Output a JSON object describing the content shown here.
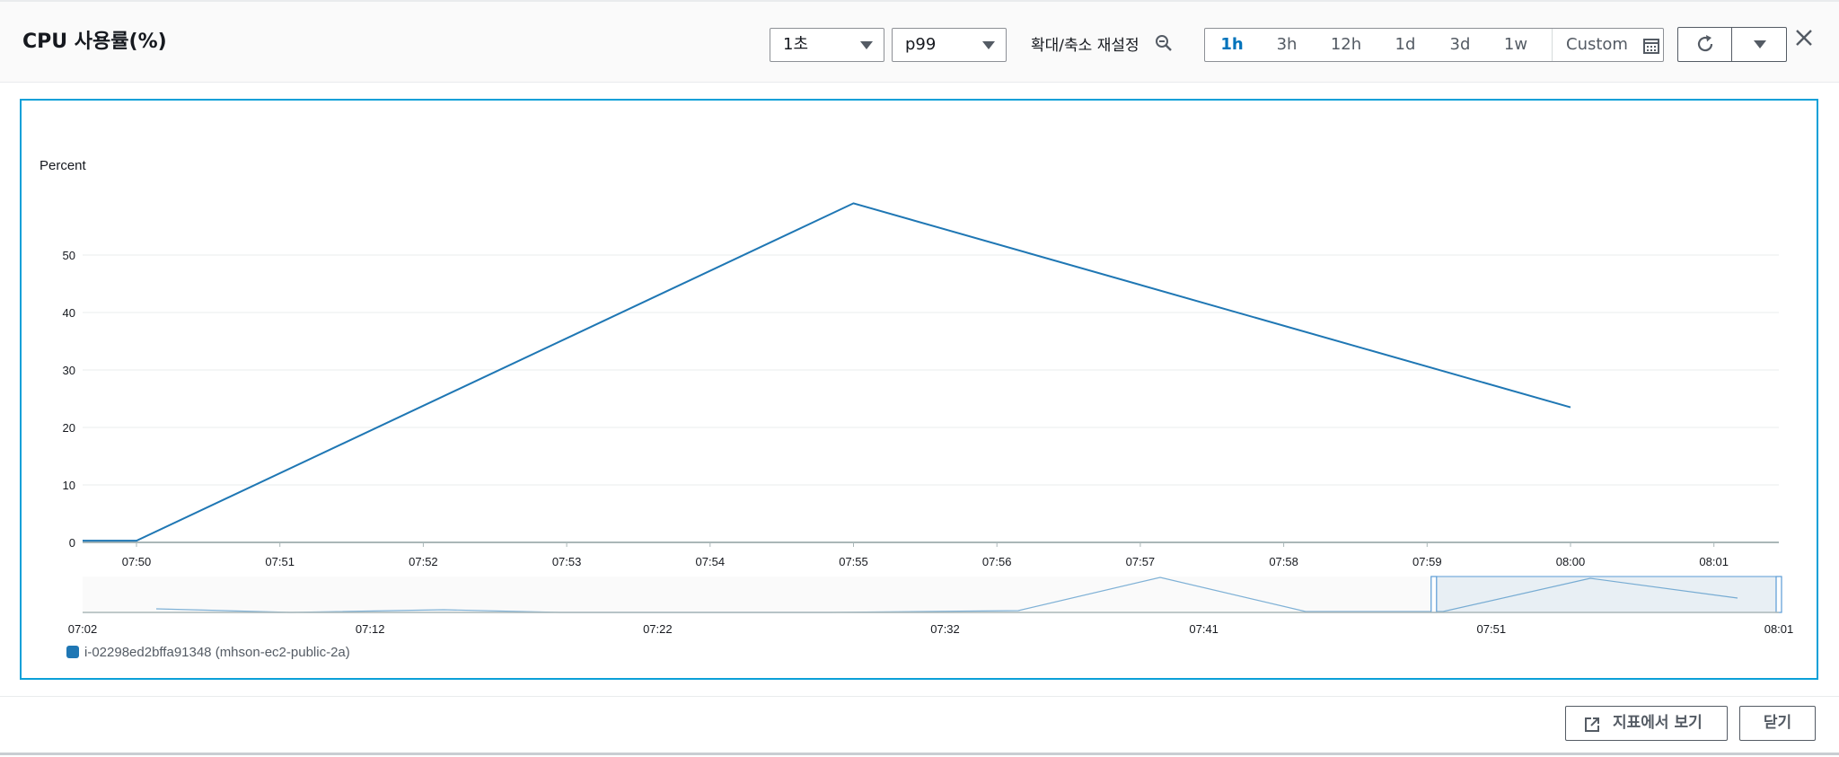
{
  "header": {
    "title": "CPU 사용률(%)",
    "period_select": "1초",
    "statistic_select": "p99",
    "zoom_reset_label": "확대/축소 재설정",
    "time_ranges": [
      "1h",
      "3h",
      "12h",
      "1d",
      "3d",
      "1w"
    ],
    "active_range": "1h",
    "custom_label": "Custom"
  },
  "footer": {
    "view_in_metrics_label": "지표에서 보기",
    "close_label": "닫기"
  },
  "colors": {
    "series": "#1f77b4",
    "accent": "#0073bb",
    "frame": "#0aa0d8"
  },
  "chart_data": {
    "type": "line",
    "ylabel": "Percent",
    "yticks": [
      0,
      10,
      20,
      30,
      40,
      50
    ],
    "ylim": [
      0,
      60
    ],
    "x_tick_labels": [
      "07:50",
      "07:51",
      "07:52",
      "07:53",
      "07:54",
      "07:55",
      "07:56",
      "07:57",
      "07:58",
      "07:59",
      "08:00",
      "08:01"
    ],
    "series": [
      {
        "name": "i-02298ed2bffa91348 (mhson-ec2-public-2a)",
        "color": "#1f77b4",
        "x": [
          "07:49:38",
          "07:50",
          "07:55",
          "08:00"
        ],
        "y": [
          0.3,
          0.3,
          59.0,
          23.5
        ]
      }
    ],
    "overview": {
      "x_tick_labels": [
        "07:02",
        "07:12",
        "07:22",
        "07:32",
        "07:41",
        "07:51",
        "08:01"
      ],
      "selected_range": [
        "07:49",
        "08:01"
      ]
    },
    "legend_position": "bottom-left",
    "grid": true
  }
}
